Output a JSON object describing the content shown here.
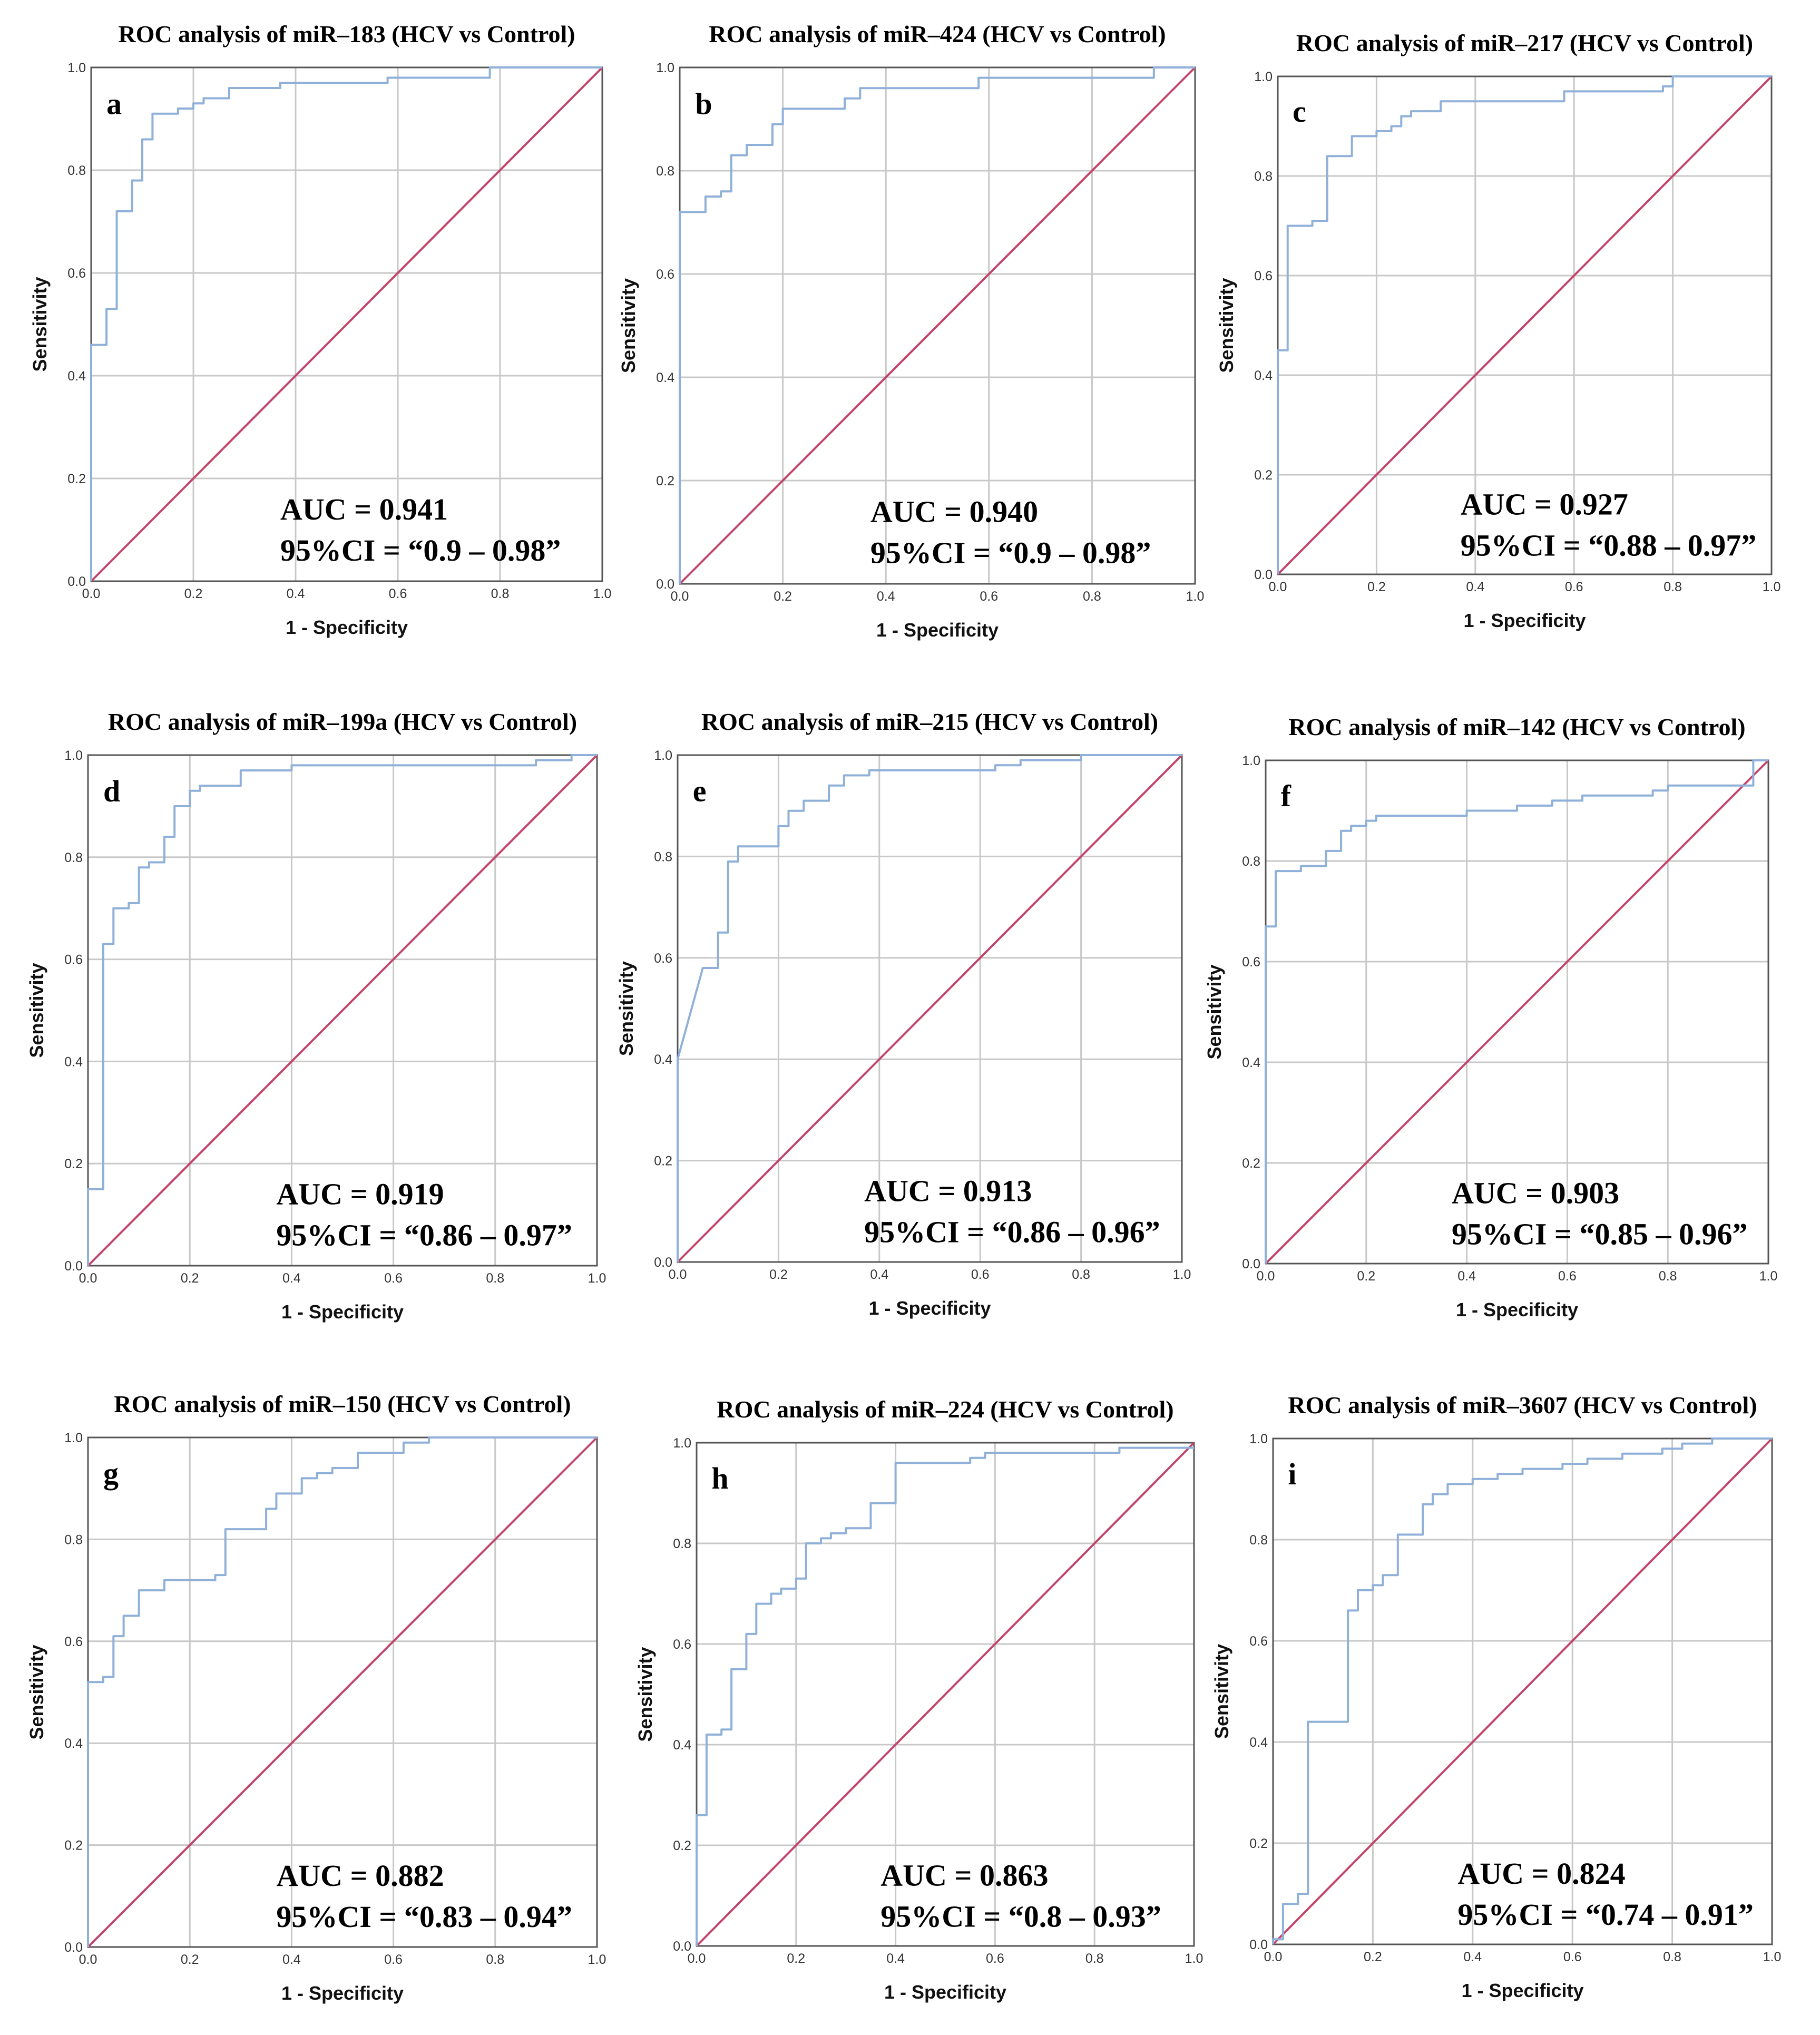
{
  "colors": {
    "roc": "#8fb0d8",
    "reference": "#c2446a",
    "grid": "#c8c8c8",
    "frame": "#555555"
  },
  "chart_data": [
    {
      "type": "line",
      "panel": "a",
      "title": "ROC analysis of miR–183 (HCV vs Control)",
      "xlabel": "1 - Specificity",
      "ylabel": "Sensitivity",
      "xlim": [
        0,
        1
      ],
      "ylim": [
        0,
        1
      ],
      "ticks": [
        "0.0",
        "0.2",
        "0.4",
        "0.6",
        "0.8",
        "1.0"
      ],
      "auc_text": "AUC = 0.941",
      "ci_text": "95%CI = “0.9 – 0.98”",
      "roc": [
        [
          0,
          0
        ],
        [
          0,
          0.46
        ],
        [
          0.03,
          0.46
        ],
        [
          0.03,
          0.53
        ],
        [
          0.05,
          0.53
        ],
        [
          0.05,
          0.72
        ],
        [
          0.08,
          0.72
        ],
        [
          0.08,
          0.78
        ],
        [
          0.1,
          0.78
        ],
        [
          0.1,
          0.86
        ],
        [
          0.12,
          0.86
        ],
        [
          0.12,
          0.91
        ],
        [
          0.17,
          0.91
        ],
        [
          0.17,
          0.92
        ],
        [
          0.2,
          0.92
        ],
        [
          0.2,
          0.93
        ],
        [
          0.22,
          0.93
        ],
        [
          0.22,
          0.94
        ],
        [
          0.27,
          0.94
        ],
        [
          0.27,
          0.96
        ],
        [
          0.37,
          0.96
        ],
        [
          0.37,
          0.97
        ],
        [
          0.58,
          0.97
        ],
        [
          0.58,
          0.98
        ],
        [
          0.78,
          0.98
        ],
        [
          0.78,
          1.0
        ],
        [
          1,
          1
        ]
      ],
      "reference": [
        [
          0,
          0
        ],
        [
          1,
          1
        ]
      ]
    },
    {
      "type": "line",
      "panel": "b",
      "title": "ROC analysis of miR–424 (HCV vs Control)",
      "xlabel": "1 - Specificity",
      "ylabel": "Sensitivity",
      "xlim": [
        0,
        1
      ],
      "ylim": [
        0,
        1
      ],
      "ticks": [
        "0.0",
        "0.2",
        "0.4",
        "0.6",
        "0.8",
        "1.0"
      ],
      "auc_text": "AUC = 0.940",
      "ci_text": "95%CI = “0.9 – 0.98”",
      "roc": [
        [
          0,
          0
        ],
        [
          0,
          0.72
        ],
        [
          0.05,
          0.72
        ],
        [
          0.05,
          0.75
        ],
        [
          0.08,
          0.75
        ],
        [
          0.08,
          0.76
        ],
        [
          0.1,
          0.76
        ],
        [
          0.1,
          0.83
        ],
        [
          0.13,
          0.83
        ],
        [
          0.13,
          0.85
        ],
        [
          0.18,
          0.85
        ],
        [
          0.18,
          0.89
        ],
        [
          0.2,
          0.89
        ],
        [
          0.2,
          0.92
        ],
        [
          0.32,
          0.92
        ],
        [
          0.32,
          0.94
        ],
        [
          0.35,
          0.94
        ],
        [
          0.35,
          0.96
        ],
        [
          0.58,
          0.96
        ],
        [
          0.58,
          0.98
        ],
        [
          0.92,
          0.98
        ],
        [
          0.92,
          1.0
        ],
        [
          1,
          1
        ]
      ],
      "reference": [
        [
          0,
          0
        ],
        [
          1,
          1
        ]
      ]
    },
    {
      "type": "line",
      "panel": "c",
      "title": "ROC analysis of miR–217 (HCV vs Control)",
      "xlabel": "1 - Specificity",
      "ylabel": "Sensitivity",
      "xlim": [
        0,
        1
      ],
      "ylim": [
        0,
        1
      ],
      "ticks": [
        "0.0",
        "0.2",
        "0.4",
        "0.6",
        "0.8",
        "1.0"
      ],
      "auc_text": "AUC = 0.927",
      "ci_text": "95%CI = “0.88 – 0.97”",
      "roc": [
        [
          0,
          0
        ],
        [
          0,
          0.45
        ],
        [
          0.02,
          0.45
        ],
        [
          0.02,
          0.7
        ],
        [
          0.07,
          0.7
        ],
        [
          0.07,
          0.71
        ],
        [
          0.1,
          0.71
        ],
        [
          0.1,
          0.84
        ],
        [
          0.15,
          0.84
        ],
        [
          0.15,
          0.88
        ],
        [
          0.2,
          0.88
        ],
        [
          0.2,
          0.89
        ],
        [
          0.23,
          0.89
        ],
        [
          0.23,
          0.9
        ],
        [
          0.25,
          0.9
        ],
        [
          0.25,
          0.92
        ],
        [
          0.27,
          0.92
        ],
        [
          0.27,
          0.93
        ],
        [
          0.33,
          0.93
        ],
        [
          0.33,
          0.95
        ],
        [
          0.58,
          0.95
        ],
        [
          0.58,
          0.97
        ],
        [
          0.78,
          0.97
        ],
        [
          0.78,
          0.98
        ],
        [
          0.8,
          0.98
        ],
        [
          0.8,
          1.0
        ],
        [
          1,
          1
        ]
      ],
      "reference": [
        [
          0,
          0
        ],
        [
          1,
          1
        ]
      ]
    },
    {
      "type": "line",
      "panel": "d",
      "title": "ROC analysis of miR–199a (HCV vs Control)",
      "xlabel": "1 - Specificity",
      "ylabel": "Sensitivity",
      "xlim": [
        0,
        1
      ],
      "ylim": [
        0,
        1
      ],
      "ticks": [
        "0.0",
        "0.2",
        "0.4",
        "0.6",
        "0.8",
        "1.0"
      ],
      "auc_text": "AUC = 0.919",
      "ci_text": "95%CI = “0.86 – 0.97”",
      "roc": [
        [
          0,
          0
        ],
        [
          0,
          0.15
        ],
        [
          0.03,
          0.15
        ],
        [
          0.03,
          0.63
        ],
        [
          0.05,
          0.63
        ],
        [
          0.05,
          0.7
        ],
        [
          0.08,
          0.7
        ],
        [
          0.08,
          0.71
        ],
        [
          0.1,
          0.71
        ],
        [
          0.1,
          0.78
        ],
        [
          0.12,
          0.78
        ],
        [
          0.12,
          0.79
        ],
        [
          0.15,
          0.79
        ],
        [
          0.15,
          0.84
        ],
        [
          0.17,
          0.84
        ],
        [
          0.17,
          0.9
        ],
        [
          0.2,
          0.9
        ],
        [
          0.2,
          0.93
        ],
        [
          0.22,
          0.93
        ],
        [
          0.22,
          0.94
        ],
        [
          0.3,
          0.94
        ],
        [
          0.3,
          0.97
        ],
        [
          0.4,
          0.97
        ],
        [
          0.4,
          0.98
        ],
        [
          0.88,
          0.98
        ],
        [
          0.88,
          0.99
        ],
        [
          0.95,
          0.99
        ],
        [
          0.95,
          1.0
        ],
        [
          1,
          1
        ]
      ],
      "reference": [
        [
          0,
          0
        ],
        [
          1,
          1
        ]
      ]
    },
    {
      "type": "line",
      "panel": "e",
      "title": "ROC analysis of miR–215 (HCV vs Control)",
      "xlabel": "1 - Specificity",
      "ylabel": "Sensitivity",
      "xlim": [
        0,
        1
      ],
      "ylim": [
        0,
        1
      ],
      "ticks": [
        "0.0",
        "0.2",
        "0.4",
        "0.6",
        "0.8",
        "1.0"
      ],
      "auc_text": "AUC = 0.913",
      "ci_text": "95%CI = “0.86 – 0.96”",
      "roc": [
        [
          0,
          0
        ],
        [
          0,
          0.4
        ],
        [
          0.05,
          0.58
        ],
        [
          0.08,
          0.58
        ],
        [
          0.08,
          0.65
        ],
        [
          0.1,
          0.65
        ],
        [
          0.1,
          0.79
        ],
        [
          0.12,
          0.79
        ],
        [
          0.12,
          0.82
        ],
        [
          0.2,
          0.82
        ],
        [
          0.2,
          0.86
        ],
        [
          0.22,
          0.86
        ],
        [
          0.22,
          0.89
        ],
        [
          0.25,
          0.89
        ],
        [
          0.25,
          0.91
        ],
        [
          0.3,
          0.91
        ],
        [
          0.3,
          0.94
        ],
        [
          0.33,
          0.94
        ],
        [
          0.33,
          0.96
        ],
        [
          0.38,
          0.96
        ],
        [
          0.38,
          0.97
        ],
        [
          0.63,
          0.97
        ],
        [
          0.63,
          0.98
        ],
        [
          0.68,
          0.98
        ],
        [
          0.68,
          0.99
        ],
        [
          0.8,
          0.99
        ],
        [
          0.8,
          1.0
        ],
        [
          1,
          1
        ]
      ],
      "reference": [
        [
          0,
          0
        ],
        [
          1,
          1
        ]
      ]
    },
    {
      "type": "line",
      "panel": "f",
      "title": "ROC analysis of miR–142 (HCV vs Control)",
      "xlabel": "1 - Specificity",
      "ylabel": "Sensitivity",
      "xlim": [
        0,
        1
      ],
      "ylim": [
        0,
        1
      ],
      "ticks": [
        "0.0",
        "0.2",
        "0.4",
        "0.6",
        "0.8",
        "1.0"
      ],
      "auc_text": "AUC = 0.903",
      "ci_text": "95%CI = “0.85 – 0.96”",
      "roc": [
        [
          0,
          0
        ],
        [
          0,
          0.67
        ],
        [
          0.02,
          0.67
        ],
        [
          0.02,
          0.78
        ],
        [
          0.07,
          0.78
        ],
        [
          0.07,
          0.79
        ],
        [
          0.12,
          0.79
        ],
        [
          0.12,
          0.82
        ],
        [
          0.15,
          0.82
        ],
        [
          0.15,
          0.86
        ],
        [
          0.17,
          0.86
        ],
        [
          0.17,
          0.87
        ],
        [
          0.2,
          0.87
        ],
        [
          0.2,
          0.88
        ],
        [
          0.22,
          0.88
        ],
        [
          0.22,
          0.89
        ],
        [
          0.4,
          0.89
        ],
        [
          0.4,
          0.9
        ],
        [
          0.5,
          0.9
        ],
        [
          0.5,
          0.91
        ],
        [
          0.57,
          0.91
        ],
        [
          0.57,
          0.92
        ],
        [
          0.63,
          0.92
        ],
        [
          0.63,
          0.93
        ],
        [
          0.77,
          0.93
        ],
        [
          0.77,
          0.94
        ],
        [
          0.8,
          0.94
        ],
        [
          0.8,
          0.95
        ],
        [
          0.97,
          0.95
        ],
        [
          0.97,
          1.0
        ],
        [
          1,
          1
        ]
      ],
      "reference": [
        [
          0,
          0
        ],
        [
          1,
          1
        ]
      ]
    },
    {
      "type": "line",
      "panel": "g",
      "title": "ROC analysis of miR–150 (HCV vs Control)",
      "xlabel": "1 - Specificity",
      "ylabel": "Sensitivity",
      "xlim": [
        0,
        1
      ],
      "ylim": [
        0,
        1
      ],
      "ticks": [
        "0.0",
        "0.2",
        "0.4",
        "0.6",
        "0.8",
        "1.0"
      ],
      "auc_text": "AUC = 0.882",
      "ci_text": "95%CI = “0.83 – 0.94”",
      "roc": [
        [
          0,
          0
        ],
        [
          0,
          0.52
        ],
        [
          0.03,
          0.52
        ],
        [
          0.03,
          0.53
        ],
        [
          0.05,
          0.53
        ],
        [
          0.05,
          0.61
        ],
        [
          0.07,
          0.61
        ],
        [
          0.07,
          0.65
        ],
        [
          0.1,
          0.65
        ],
        [
          0.1,
          0.7
        ],
        [
          0.15,
          0.7
        ],
        [
          0.15,
          0.72
        ],
        [
          0.25,
          0.72
        ],
        [
          0.25,
          0.73
        ],
        [
          0.27,
          0.73
        ],
        [
          0.27,
          0.82
        ],
        [
          0.35,
          0.82
        ],
        [
          0.35,
          0.86
        ],
        [
          0.37,
          0.86
        ],
        [
          0.37,
          0.89
        ],
        [
          0.42,
          0.89
        ],
        [
          0.42,
          0.92
        ],
        [
          0.45,
          0.92
        ],
        [
          0.45,
          0.93
        ],
        [
          0.48,
          0.93
        ],
        [
          0.48,
          0.94
        ],
        [
          0.53,
          0.94
        ],
        [
          0.53,
          0.97
        ],
        [
          0.62,
          0.97
        ],
        [
          0.62,
          0.99
        ],
        [
          0.67,
          0.99
        ],
        [
          0.67,
          1.0
        ],
        [
          1,
          1
        ]
      ],
      "reference": [
        [
          0,
          0
        ],
        [
          1,
          1
        ]
      ]
    },
    {
      "type": "line",
      "panel": "h",
      "title": "ROC analysis of miR–224 (HCV vs Control)",
      "xlabel": "1 - Specificity",
      "ylabel": "Sensitivity",
      "xlim": [
        0,
        1
      ],
      "ylim": [
        0,
        1
      ],
      "ticks": [
        "0.0",
        "0.2",
        "0.4",
        "0.6",
        "0.8",
        "1.0"
      ],
      "auc_text": "AUC = 0.863",
      "ci_text": "95%CI = “0.8 – 0.93”",
      "roc": [
        [
          0,
          0
        ],
        [
          0,
          0.26
        ],
        [
          0.02,
          0.26
        ],
        [
          0.02,
          0.42
        ],
        [
          0.05,
          0.42
        ],
        [
          0.05,
          0.43
        ],
        [
          0.07,
          0.43
        ],
        [
          0.07,
          0.55
        ],
        [
          0.1,
          0.55
        ],
        [
          0.1,
          0.62
        ],
        [
          0.12,
          0.62
        ],
        [
          0.12,
          0.68
        ],
        [
          0.15,
          0.68
        ],
        [
          0.15,
          0.7
        ],
        [
          0.17,
          0.7
        ],
        [
          0.17,
          0.71
        ],
        [
          0.2,
          0.71
        ],
        [
          0.2,
          0.73
        ],
        [
          0.22,
          0.73
        ],
        [
          0.22,
          0.8
        ],
        [
          0.25,
          0.8
        ],
        [
          0.25,
          0.81
        ],
        [
          0.27,
          0.81
        ],
        [
          0.27,
          0.82
        ],
        [
          0.3,
          0.82
        ],
        [
          0.3,
          0.83
        ],
        [
          0.35,
          0.83
        ],
        [
          0.35,
          0.88
        ],
        [
          0.4,
          0.88
        ],
        [
          0.4,
          0.96
        ],
        [
          0.55,
          0.96
        ],
        [
          0.55,
          0.97
        ],
        [
          0.58,
          0.97
        ],
        [
          0.58,
          0.98
        ],
        [
          0.85,
          0.98
        ],
        [
          0.85,
          0.99
        ],
        [
          1,
          0.99
        ]
      ],
      "reference": [
        [
          0,
          0
        ],
        [
          1,
          1
        ]
      ]
    },
    {
      "type": "line",
      "panel": "i",
      "title": "ROC analysis of miR–3607 (HCV vs Control)",
      "xlabel": "1 - Specificity",
      "ylabel": "Sensitivity",
      "xlim": [
        0,
        1
      ],
      "ylim": [
        0,
        1
      ],
      "ticks": [
        "0.0",
        "0.2",
        "0.4",
        "0.6",
        "0.8",
        "1.0"
      ],
      "auc_text": "AUC = 0.824",
      "ci_text": "95%CI = “0.74 – 0.91”",
      "roc": [
        [
          0,
          0
        ],
        [
          0,
          0.01
        ],
        [
          0.02,
          0.01
        ],
        [
          0.02,
          0.08
        ],
        [
          0.05,
          0.08
        ],
        [
          0.05,
          0.1
        ],
        [
          0.07,
          0.1
        ],
        [
          0.07,
          0.44
        ],
        [
          0.15,
          0.44
        ],
        [
          0.15,
          0.66
        ],
        [
          0.17,
          0.66
        ],
        [
          0.17,
          0.7
        ],
        [
          0.2,
          0.7
        ],
        [
          0.2,
          0.71
        ],
        [
          0.22,
          0.71
        ],
        [
          0.22,
          0.73
        ],
        [
          0.25,
          0.73
        ],
        [
          0.25,
          0.81
        ],
        [
          0.3,
          0.81
        ],
        [
          0.3,
          0.87
        ],
        [
          0.32,
          0.87
        ],
        [
          0.32,
          0.89
        ],
        [
          0.35,
          0.89
        ],
        [
          0.35,
          0.91
        ],
        [
          0.4,
          0.91
        ],
        [
          0.4,
          0.92
        ],
        [
          0.45,
          0.92
        ],
        [
          0.45,
          0.93
        ],
        [
          0.5,
          0.93
        ],
        [
          0.5,
          0.94
        ],
        [
          0.58,
          0.94
        ],
        [
          0.58,
          0.95
        ],
        [
          0.63,
          0.95
        ],
        [
          0.63,
          0.96
        ],
        [
          0.7,
          0.96
        ],
        [
          0.7,
          0.97
        ],
        [
          0.78,
          0.97
        ],
        [
          0.78,
          0.98
        ],
        [
          0.82,
          0.98
        ],
        [
          0.82,
          0.99
        ],
        [
          0.88,
          0.99
        ],
        [
          0.88,
          1.0
        ],
        [
          1,
          1
        ]
      ],
      "reference": [
        [
          0,
          0
        ],
        [
          1,
          1
        ]
      ]
    }
  ]
}
